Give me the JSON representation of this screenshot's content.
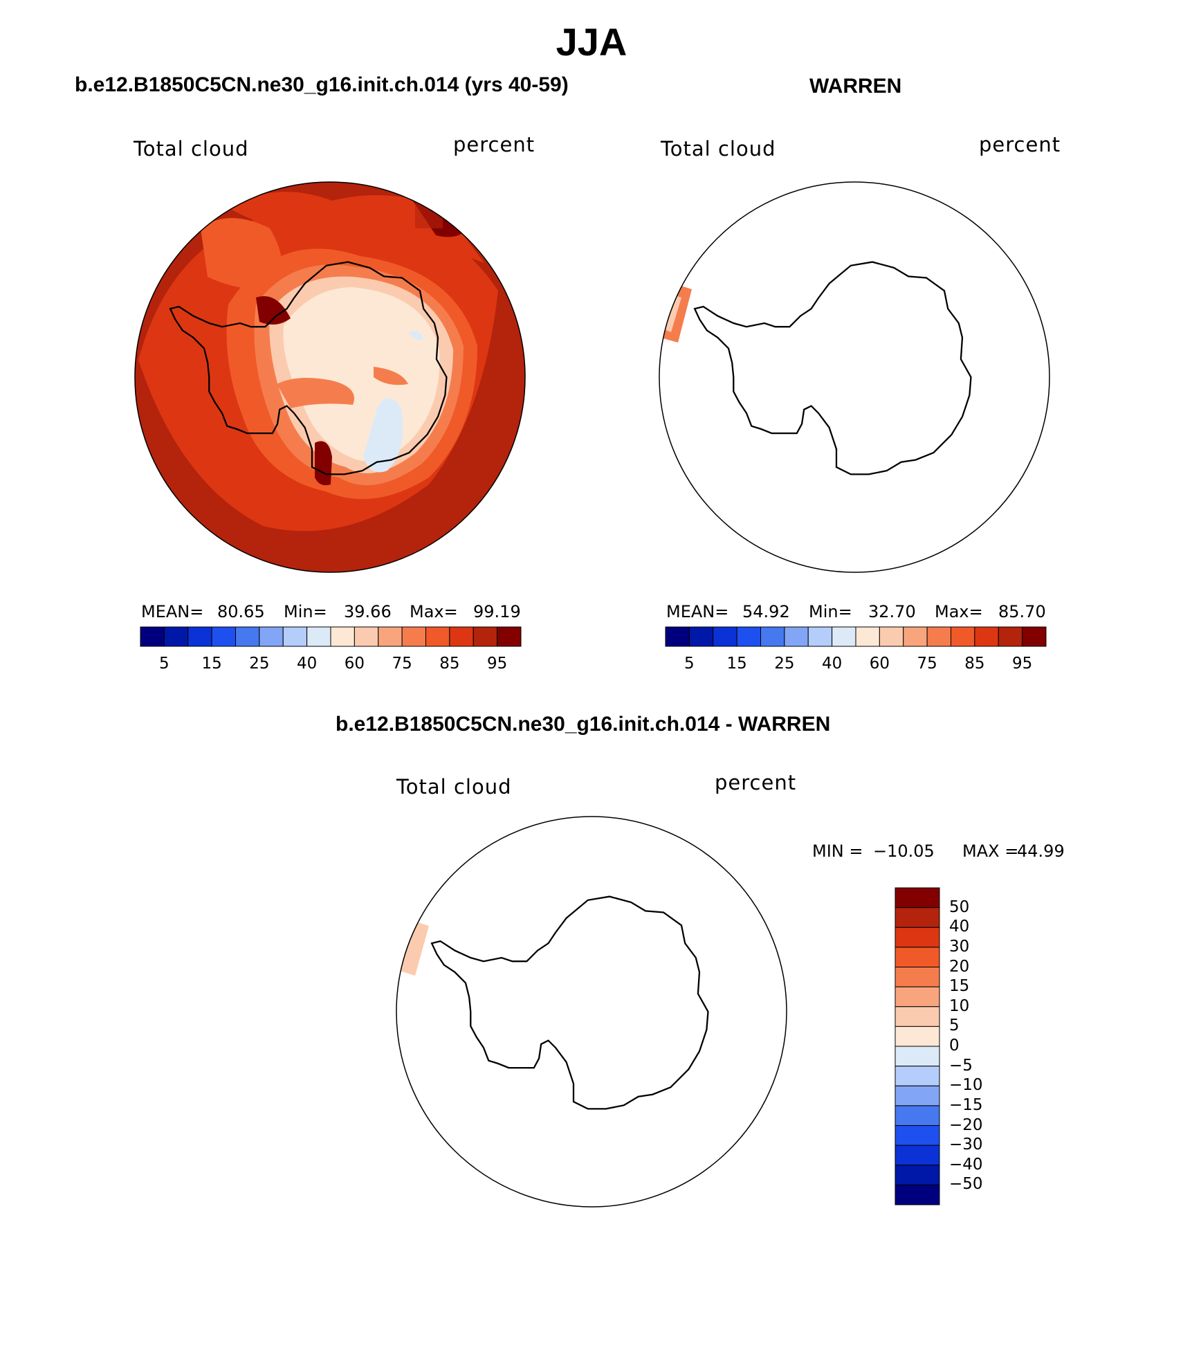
{
  "title": "JJA",
  "panels": [
    {
      "subtitle": "b.e12.B1850C5CN.ne30_g16.init.ch.014 (yrs 40-59)",
      "field_label": "Total cloud",
      "units_label": "percent",
      "stats": {
        "mean_label": "MEAN=",
        "mean": "80.65",
        "min_label": "Min=",
        "min": "39.66",
        "max_label": "Max=",
        "max": "99.19"
      },
      "colorbar_ticks": [
        "5",
        "15",
        "25",
        "40",
        "60",
        "75",
        "85",
        "95"
      ]
    },
    {
      "subtitle": "WARREN",
      "field_label": "Total cloud",
      "units_label": "percent",
      "stats": {
        "mean_label": "MEAN=",
        "mean": "54.92",
        "min_label": "Min=",
        "min": "32.70",
        "max_label": "Max=",
        "max": "85.70"
      },
      "colorbar_ticks": [
        "5",
        "15",
        "25",
        "40",
        "60",
        "75",
        "85",
        "95"
      ]
    },
    {
      "subtitle": "b.e12.B1850C5CN.ne30_g16.init.ch.014 - WARREN",
      "field_label": "Total cloud",
      "units_label": "percent",
      "stats": {
        "min_label": "MIN =",
        "min": "−10.05",
        "max_label": "MAX =",
        "max": "44.99"
      },
      "colorbar_ticks": [
        "50",
        "40",
        "30",
        "20",
        "15",
        "10",
        "5",
        "0",
        "−5",
        "−10",
        "−15",
        "−20",
        "−30",
        "−40",
        "−50"
      ]
    }
  ],
  "colors": {
    "abs_scale": [
      "#00007f",
      "#0018a8",
      "#0a32d6",
      "#1e50f0",
      "#4678f0",
      "#82a5f5",
      "#b4cdfa",
      "#dceaf8",
      "#fde8d5",
      "#fbcbb0",
      "#f8a57e",
      "#f57d4d",
      "#f05a28",
      "#dc3712",
      "#b4230c",
      "#820000"
    ],
    "diff_scale": [
      "#820000",
      "#b4230c",
      "#dc3712",
      "#f05a28",
      "#f57d4d",
      "#f8a57e",
      "#fbcbb0",
      "#fde8d5",
      "#dceaf8",
      "#b4cdfa",
      "#82a5f5",
      "#4678f0",
      "#1e50f0",
      "#0a32d6",
      "#0018a8",
      "#00007f"
    ]
  }
}
